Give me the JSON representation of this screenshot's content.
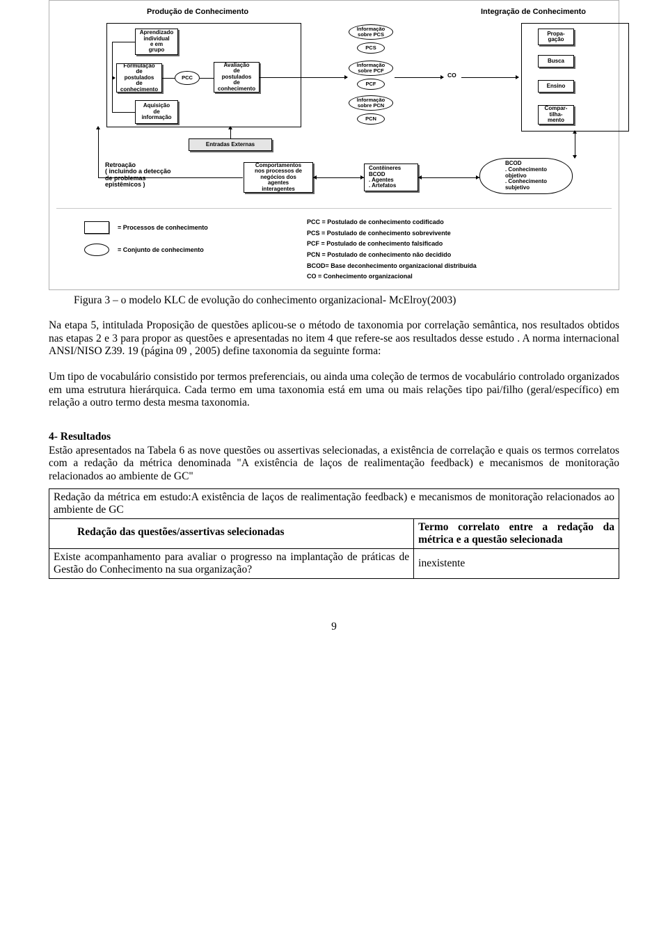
{
  "diagram": {
    "headers": {
      "production": "Produção de Conhecimento",
      "integration": "Integração de Conhecimento"
    },
    "production_nodes": {
      "aprendizado": "Aprendizado\nindividual\ne em\ngrupo",
      "formulacao": "Formulação\nde\npostulados\nde\nconhecimento",
      "aquisicao": "Aquisição\nde\ninformação",
      "pcc": "PCC",
      "avaliacao": "Avaliação\nde\npostulados\nde\nconhecimento"
    },
    "info_ovals": {
      "pcs_info": "Informação\nsobre PCS",
      "pcs": "PCS",
      "pcf_info": "Informação\nsobre PCF",
      "pcf": "PCF",
      "pcn_info": "Informação\nsobre PCN",
      "pcn": "PCN"
    },
    "co_label": "CO",
    "integration_nodes": {
      "propagacao": "Propa-\ngação",
      "busca": "Busca",
      "ensino": "Ensino",
      "compart": "Compar-\ntilha-\nmento"
    },
    "entradas_externas": "Entradas Externas",
    "retroacao": "Retroação\n( incluindo a detecção\nde problemas\nepistêmicos )",
    "bottom_nodes": {
      "comportamentos": "Comportamentos\nnos processos de\nnegócios dos\nagentes\ninteragentes",
      "conteineres": "Contêineres\nBCOD\n. Agentes\n. Artefatos",
      "bcod": "BCOD\n. Conhecimento\nobjetivo\n. Conhecimento\nsubjetivo"
    }
  },
  "legend": {
    "left": {
      "proc": "= Processos de conhecimento",
      "conj": "= Conjunto de conhecimento"
    },
    "right": [
      "PCC = Postulado de conhecimento codificado",
      "PCS = Postulado de conhecimento sobrevivente",
      "PCF = Postulado de conhecimento falsificado",
      "PCN = Postulado de conhecimento não decidido",
      "BCOD= Base deconhecimento organizacional distribuída",
      "CO = Conhecimento organizacional"
    ]
  },
  "caption": "Figura 3 – o modelo KLC de evolução do conhecimento organizacional- McElroy(2003)",
  "paragraph1": "Na etapa 5, intitulada Proposição de questões aplicou-se o método de taxonomia por correlação semântica, nos resultados obtidos nas etapas 2 e 3 para propor as  questões e apresentadas no item 4 que refere-se aos resultados desse estudo . A norma internacional ANSI/NISO Z39. 19 (página 09 , 2005) define  taxonomia  da seguinte forma:",
  "paragraph2": "Um tipo de vocabulário consistido por termos preferenciais, ou ainda uma coleção de termos de vocabulário controlado organizados em uma estrutura hierárquica. Cada termo em uma taxonomia está em uma ou mais relações tipo pai/filho (geral/específico) em relação a outro termo desta mesma taxonomia.",
  "section_heading": "4- Resultados",
  "paragraph3": "Estão apresentados na  Tabela 6 as nove questões ou assertivas selecionadas, a existência de correlação e quais os termos correlatos com a redação da métrica denominada \"A existência de laços de realimentação feedback) e mecanismos de monitoração relacionados ao ambiente de GC\"",
  "table": {
    "metric_row": "Redação da métrica em estudo:A existência de laços de realimentação feedback) e mecanismos de monitoração relacionados ao ambiente de GC",
    "header_col1": "Redação das questões/assertivas selecionadas",
    "header_col2": "Termo correlato entre a redação da métrica e a questão selecionada",
    "row1_q": "Existe acompanhamento para avaliar o progresso na implantação de práticas de Gestão do Conhecimento na sua organização?",
    "row1_t": "inexistente"
  },
  "page_number": "9"
}
